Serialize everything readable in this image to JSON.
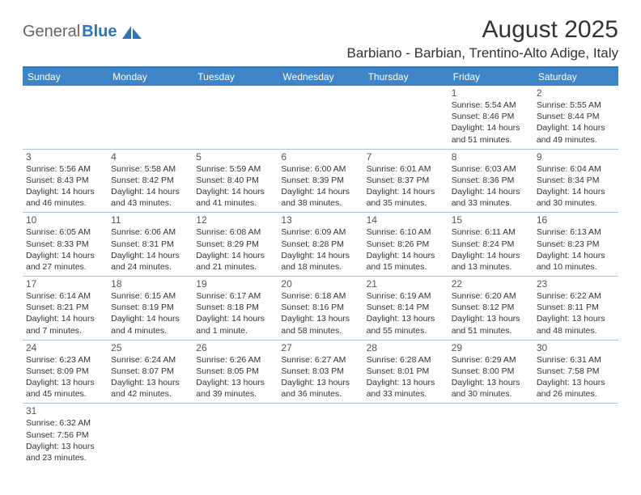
{
  "logo": {
    "general": "General",
    "blue": "Blue"
  },
  "title": "August 2025",
  "location": "Barbiano - Barbian, Trentino-Alto Adige, Italy",
  "colors": {
    "header_bg": "#3d85c6",
    "header_border": "#2e75b6",
    "cell_border": "#a8c5e0",
    "text": "#333333"
  },
  "dayNames": [
    "Sunday",
    "Monday",
    "Tuesday",
    "Wednesday",
    "Thursday",
    "Friday",
    "Saturday"
  ],
  "weeks": [
    [
      null,
      null,
      null,
      null,
      null,
      {
        "n": "1",
        "sr": "5:54 AM",
        "ss": "8:46 PM",
        "dl": "14 hours and 51 minutes."
      },
      {
        "n": "2",
        "sr": "5:55 AM",
        "ss": "8:44 PM",
        "dl": "14 hours and 49 minutes."
      }
    ],
    [
      {
        "n": "3",
        "sr": "5:56 AM",
        "ss": "8:43 PM",
        "dl": "14 hours and 46 minutes."
      },
      {
        "n": "4",
        "sr": "5:58 AM",
        "ss": "8:42 PM",
        "dl": "14 hours and 43 minutes."
      },
      {
        "n": "5",
        "sr": "5:59 AM",
        "ss": "8:40 PM",
        "dl": "14 hours and 41 minutes."
      },
      {
        "n": "6",
        "sr": "6:00 AM",
        "ss": "8:39 PM",
        "dl": "14 hours and 38 minutes."
      },
      {
        "n": "7",
        "sr": "6:01 AM",
        "ss": "8:37 PM",
        "dl": "14 hours and 35 minutes."
      },
      {
        "n": "8",
        "sr": "6:03 AM",
        "ss": "8:36 PM",
        "dl": "14 hours and 33 minutes."
      },
      {
        "n": "9",
        "sr": "6:04 AM",
        "ss": "8:34 PM",
        "dl": "14 hours and 30 minutes."
      }
    ],
    [
      {
        "n": "10",
        "sr": "6:05 AM",
        "ss": "8:33 PM",
        "dl": "14 hours and 27 minutes."
      },
      {
        "n": "11",
        "sr": "6:06 AM",
        "ss": "8:31 PM",
        "dl": "14 hours and 24 minutes."
      },
      {
        "n": "12",
        "sr": "6:08 AM",
        "ss": "8:29 PM",
        "dl": "14 hours and 21 minutes."
      },
      {
        "n": "13",
        "sr": "6:09 AM",
        "ss": "8:28 PM",
        "dl": "14 hours and 18 minutes."
      },
      {
        "n": "14",
        "sr": "6:10 AM",
        "ss": "8:26 PM",
        "dl": "14 hours and 15 minutes."
      },
      {
        "n": "15",
        "sr": "6:11 AM",
        "ss": "8:24 PM",
        "dl": "14 hours and 13 minutes."
      },
      {
        "n": "16",
        "sr": "6:13 AM",
        "ss": "8:23 PM",
        "dl": "14 hours and 10 minutes."
      }
    ],
    [
      {
        "n": "17",
        "sr": "6:14 AM",
        "ss": "8:21 PM",
        "dl": "14 hours and 7 minutes."
      },
      {
        "n": "18",
        "sr": "6:15 AM",
        "ss": "8:19 PM",
        "dl": "14 hours and 4 minutes."
      },
      {
        "n": "19",
        "sr": "6:17 AM",
        "ss": "8:18 PM",
        "dl": "14 hours and 1 minute."
      },
      {
        "n": "20",
        "sr": "6:18 AM",
        "ss": "8:16 PM",
        "dl": "13 hours and 58 minutes."
      },
      {
        "n": "21",
        "sr": "6:19 AM",
        "ss": "8:14 PM",
        "dl": "13 hours and 55 minutes."
      },
      {
        "n": "22",
        "sr": "6:20 AM",
        "ss": "8:12 PM",
        "dl": "13 hours and 51 minutes."
      },
      {
        "n": "23",
        "sr": "6:22 AM",
        "ss": "8:11 PM",
        "dl": "13 hours and 48 minutes."
      }
    ],
    [
      {
        "n": "24",
        "sr": "6:23 AM",
        "ss": "8:09 PM",
        "dl": "13 hours and 45 minutes."
      },
      {
        "n": "25",
        "sr": "6:24 AM",
        "ss": "8:07 PM",
        "dl": "13 hours and 42 minutes."
      },
      {
        "n": "26",
        "sr": "6:26 AM",
        "ss": "8:05 PM",
        "dl": "13 hours and 39 minutes."
      },
      {
        "n": "27",
        "sr": "6:27 AM",
        "ss": "8:03 PM",
        "dl": "13 hours and 36 minutes."
      },
      {
        "n": "28",
        "sr": "6:28 AM",
        "ss": "8:01 PM",
        "dl": "13 hours and 33 minutes."
      },
      {
        "n": "29",
        "sr": "6:29 AM",
        "ss": "8:00 PM",
        "dl": "13 hours and 30 minutes."
      },
      {
        "n": "30",
        "sr": "6:31 AM",
        "ss": "7:58 PM",
        "dl": "13 hours and 26 minutes."
      }
    ],
    [
      {
        "n": "31",
        "sr": "6:32 AM",
        "ss": "7:56 PM",
        "dl": "13 hours and 23 minutes."
      },
      null,
      null,
      null,
      null,
      null,
      null
    ]
  ],
  "labels": {
    "sunrise": "Sunrise:",
    "sunset": "Sunset:",
    "daylight": "Daylight:"
  }
}
